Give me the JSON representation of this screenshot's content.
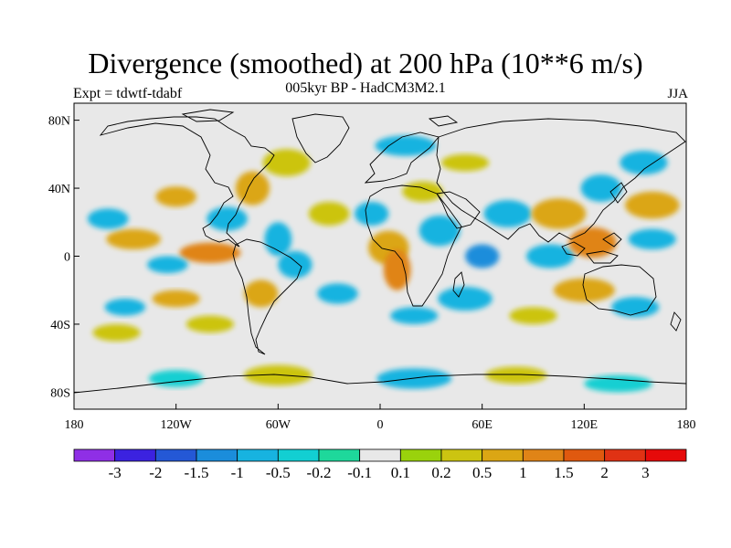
{
  "title": "Divergence (smoothed) at 200 hPa (10**6 m/s)",
  "subtitle": "005kyr BP - HadCM3M2.1",
  "experiment": "Expt = tdwtf-tdabf",
  "season": "JJA",
  "map": {
    "projection": "cylindrical equidistant",
    "lon_range": [
      -180,
      180
    ],
    "lat_range": [
      -90,
      90
    ],
    "background_color": "#e8e8e8",
    "outline_color": "#000000"
  },
  "axes": {
    "lat_ticks": [
      {
        "value": 80,
        "label": "80N"
      },
      {
        "value": 40,
        "label": "40N"
      },
      {
        "value": 0,
        "label": "0"
      },
      {
        "value": -40,
        "label": "40S"
      },
      {
        "value": -80,
        "label": "80S"
      }
    ],
    "lon_ticks": [
      {
        "value": -180,
        "label": "180"
      },
      {
        "value": -120,
        "label": "120W"
      },
      {
        "value": -60,
        "label": "60W"
      },
      {
        "value": 0,
        "label": "0"
      },
      {
        "value": 60,
        "label": "60E"
      },
      {
        "value": 120,
        "label": "120E"
      },
      {
        "value": 180,
        "label": "180"
      }
    ]
  },
  "colorbar": {
    "levels": [
      "-3",
      "-2",
      "-1.5",
      "-1",
      "-0.5",
      "-0.2",
      "-0.1",
      "0.1",
      "0.2",
      "0.5",
      "1",
      "1.5",
      "2",
      "3"
    ],
    "colors": [
      "#8f2fe6",
      "#3b22e0",
      "#2458d6",
      "#1b8ddb",
      "#17b3e0",
      "#12cfd2",
      "#1ed89b",
      "#e8e8e8",
      "#9ad20c",
      "#ccc411",
      "#dba614",
      "#e08417",
      "#e0590f",
      "#e03214",
      "#e60a0a"
    ]
  },
  "chart_data": {
    "type": "heatmap",
    "title": "Divergence (smoothed) at 200 hPa (10**6 m/s)",
    "subtitle": "005kyr BP - HadCM3M2.1",
    "units": "10**6 m/s",
    "variable": "Divergence (smoothed) at 200 hPa",
    "levels": [
      -3,
      -2,
      -1.5,
      -1,
      -0.5,
      -0.2,
      -0.1,
      0.1,
      0.2,
      0.5,
      1,
      1.5,
      2,
      3
    ],
    "xlabel": "",
    "ylabel": "",
    "xlim": [
      -180,
      180
    ],
    "ylim": [
      -90,
      90
    ],
    "blobs": [
      {
        "lon": -145,
        "lat": 10,
        "rx": 16,
        "ry": 6,
        "value": 0.8
      },
      {
        "lon": -100,
        "lat": 2,
        "rx": 18,
        "ry": 6,
        "value": 1.3
      },
      {
        "lon": -125,
        "lat": -5,
        "rx": 12,
        "ry": 5,
        "value": -0.7
      },
      {
        "lon": -160,
        "lat": 22,
        "rx": 12,
        "ry": 6,
        "value": -0.5
      },
      {
        "lon": -120,
        "lat": 35,
        "rx": 12,
        "ry": 6,
        "value": 0.6
      },
      {
        "lon": -75,
        "lat": 40,
        "rx": 10,
        "ry": 10,
        "value": 0.8
      },
      {
        "lon": -55,
        "lat": 55,
        "rx": 14,
        "ry": 8,
        "value": 0.5
      },
      {
        "lon": -90,
        "lat": 22,
        "rx": 12,
        "ry": 7,
        "value": -0.8
      },
      {
        "lon": -60,
        "lat": 10,
        "rx": 8,
        "ry": 10,
        "value": -0.6
      },
      {
        "lon": -70,
        "lat": -22,
        "rx": 10,
        "ry": 8,
        "value": 0.7
      },
      {
        "lon": -50,
        "lat": -5,
        "rx": 10,
        "ry": 8,
        "value": -0.8
      },
      {
        "lon": -30,
        "lat": 25,
        "rx": 12,
        "ry": 7,
        "value": 0.5
      },
      {
        "lon": -25,
        "lat": -22,
        "rx": 12,
        "ry": 6,
        "value": -0.9
      },
      {
        "lon": -120,
        "lat": -25,
        "rx": 14,
        "ry": 5,
        "value": 0.6
      },
      {
        "lon": -150,
        "lat": -30,
        "rx": 12,
        "ry": 5,
        "value": -0.6
      },
      {
        "lon": -155,
        "lat": -45,
        "rx": 14,
        "ry": 5,
        "value": 0.3
      },
      {
        "lon": -100,
        "lat": -40,
        "rx": 14,
        "ry": 5,
        "value": 0.4
      },
      {
        "lon": 5,
        "lat": 5,
        "rx": 12,
        "ry": 10,
        "value": 0.9
      },
      {
        "lon": 10,
        "lat": -8,
        "rx": 8,
        "ry": 12,
        "value": 1.3
      },
      {
        "lon": -5,
        "lat": 25,
        "rx": 10,
        "ry": 7,
        "value": -0.6
      },
      {
        "lon": 25,
        "lat": 38,
        "rx": 12,
        "ry": 6,
        "value": 0.4
      },
      {
        "lon": 15,
        "lat": 65,
        "rx": 18,
        "ry": 6,
        "value": -0.5
      },
      {
        "lon": 50,
        "lat": 55,
        "rx": 14,
        "ry": 5,
        "value": 0.5
      },
      {
        "lon": 35,
        "lat": 15,
        "rx": 12,
        "ry": 9,
        "value": -0.9
      },
      {
        "lon": 50,
        "lat": -25,
        "rx": 16,
        "ry": 7,
        "value": -0.8
      },
      {
        "lon": 60,
        "lat": 0,
        "rx": 10,
        "ry": 7,
        "value": -1.4
      },
      {
        "lon": 75,
        "lat": 25,
        "rx": 14,
        "ry": 8,
        "value": -0.7
      },
      {
        "lon": 105,
        "lat": 25,
        "rx": 16,
        "ry": 9,
        "value": 1.0
      },
      {
        "lon": 100,
        "lat": 0,
        "rx": 14,
        "ry": 7,
        "value": -0.8
      },
      {
        "lon": 125,
        "lat": 8,
        "rx": 14,
        "ry": 9,
        "value": 1.2
      },
      {
        "lon": 130,
        "lat": 40,
        "rx": 12,
        "ry": 8,
        "value": -0.6
      },
      {
        "lon": 160,
        "lat": 30,
        "rx": 16,
        "ry": 8,
        "value": 1.0
      },
      {
        "lon": 160,
        "lat": 10,
        "rx": 14,
        "ry": 6,
        "value": -0.6
      },
      {
        "lon": 155,
        "lat": 55,
        "rx": 14,
        "ry": 7,
        "value": -0.5
      },
      {
        "lon": 120,
        "lat": -20,
        "rx": 18,
        "ry": 7,
        "value": 0.6
      },
      {
        "lon": 150,
        "lat": -30,
        "rx": 14,
        "ry": 6,
        "value": -0.6
      },
      {
        "lon": 90,
        "lat": -35,
        "rx": 14,
        "ry": 5,
        "value": 0.4
      },
      {
        "lon": 20,
        "lat": -35,
        "rx": 14,
        "ry": 5,
        "value": -0.5
      },
      {
        "lon": -60,
        "lat": -70,
        "rx": 20,
        "ry": 6,
        "value": 0.4
      },
      {
        "lon": 20,
        "lat": -72,
        "rx": 22,
        "ry": 6,
        "value": -0.5
      },
      {
        "lon": 80,
        "lat": -70,
        "rx": 18,
        "ry": 5,
        "value": 0.3
      },
      {
        "lon": 140,
        "lat": -75,
        "rx": 20,
        "ry": 5,
        "value": -0.4
      },
      {
        "lon": -120,
        "lat": -72,
        "rx": 16,
        "ry": 5,
        "value": -0.3
      }
    ]
  }
}
